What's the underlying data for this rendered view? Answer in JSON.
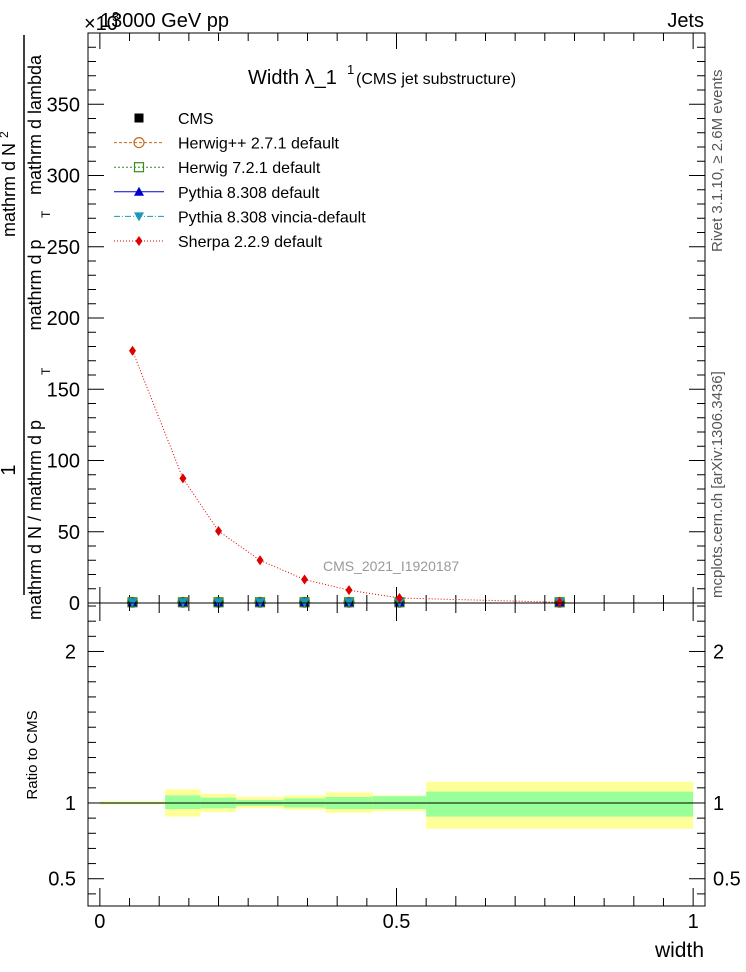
{
  "header": {
    "left": "13000 GeV pp",
    "exponent": "×10",
    "exponent_power": "3",
    "right": "Jets"
  },
  "side": {
    "rivet": "Rivet 3.1.10, ≥ 2.6M events",
    "mcplots": "mcplots.cern.ch [arXiv:1306.3436]"
  },
  "chart_data": [
    {
      "type": "line",
      "title": "Width λ_1",
      "title_sup": "1",
      "title_suffix": "(CMS jet substructure)",
      "watermark": "CMS_2021_I1920187",
      "ylabel_parts": [
        "1",
        "mathrm d N / mathrm d p",
        "T",
        "mathrm d N",
        "2",
        "mathrm d p",
        "T",
        "mathrm d lambda"
      ],
      "ylabel_numerator": "mathrm d²N",
      "ylabel_denominator": "mathrm d p_T mathrm d lambda",
      "ylabel_prefix_num": "1",
      "ylabel_prefix_den": "mathrm d N / mathrm d p_T",
      "xlim": [
        -0.02,
        1.02
      ],
      "ylim": [
        0,
        400
      ],
      "y_scale_note": "×10^3",
      "y_ticks": [
        "0",
        "50",
        "100",
        "150",
        "200",
        "250",
        "300",
        "350"
      ],
      "y_tick_values": [
        0,
        50,
        100,
        150,
        200,
        250,
        300,
        350
      ],
      "legend_position": "top-left",
      "series": [
        {
          "name": "CMS",
          "color": "#000000",
          "marker": "square-filled",
          "x": [
            0.055,
            0.14,
            0.2,
            0.27,
            0.345,
            0.42,
            0.505,
            0.775
          ],
          "y": [
            0.5,
            0.5,
            0.5,
            0.5,
            0.5,
            0.5,
            0.5,
            0.5
          ]
        },
        {
          "name": "Herwig++ 2.7.1 default",
          "color": "#c46a1b",
          "marker": "circle-open",
          "x": [
            0.055,
            0.14,
            0.2,
            0.27,
            0.345,
            0.42,
            0.505,
            0.775
          ],
          "y": [
            0.5,
            0.5,
            0.5,
            0.5,
            0.5,
            0.5,
            0.5,
            0.5
          ]
        },
        {
          "name": "Herwig 7.2.1 default",
          "color": "#3a8a1a",
          "marker": "square-open",
          "x": [
            0.055,
            0.14,
            0.2,
            0.27,
            0.345,
            0.42,
            0.505,
            0.775
          ],
          "y": [
            0.5,
            0.5,
            0.5,
            0.5,
            0.5,
            0.5,
            0.5,
            0.5
          ]
        },
        {
          "name": "Pythia 8.308 default",
          "color": "#0000cc",
          "marker": "triangle-up",
          "x": [
            0.055,
            0.14,
            0.2,
            0.27,
            0.345,
            0.42,
            0.505,
            0.775
          ],
          "y": [
            0.5,
            0.5,
            0.5,
            0.5,
            0.5,
            0.5,
            0.5,
            0.5
          ]
        },
        {
          "name": "Pythia 8.308 vincia-default",
          "color": "#1a9ab8",
          "marker": "triangle-down",
          "x": [
            0.055,
            0.14,
            0.2,
            0.27,
            0.345,
            0.42,
            0.505,
            0.775
          ],
          "y": [
            0.5,
            0.5,
            0.5,
            0.5,
            0.5,
            0.5,
            0.5,
            0.5
          ]
        },
        {
          "name": "Sherpa 2.2.9 default",
          "color": "#dd0000",
          "marker": "diamond",
          "x": [
            0.055,
            0.14,
            0.2,
            0.27,
            0.345,
            0.42,
            0.505,
            0.775
          ],
          "y": [
            177,
            87.5,
            50.5,
            30,
            16.5,
            9,
            3.5,
            0.5
          ]
        }
      ]
    },
    {
      "type": "area",
      "ylabel": "Ratio to CMS",
      "xlabel": "width",
      "xlim": [
        -0.02,
        1.02
      ],
      "ylim": [
        0.32,
        2.32
      ],
      "y_ticks": [
        "0.5",
        "1",
        "2"
      ],
      "y_tick_values": [
        0.5,
        1,
        2
      ],
      "x_ticks": [
        "0",
        "0.5",
        "1"
      ],
      "x_tick_values": [
        0,
        0.5,
        1
      ],
      "colors": {
        "inner": "#99ff99",
        "outer": "#ffff99"
      },
      "bins": [
        {
          "lo": 0.0,
          "hi": 0.11,
          "inner": [
            0.995,
            1.005
          ],
          "outer": [
            0.99,
            1.01
          ]
        },
        {
          "lo": 0.11,
          "hi": 0.17,
          "inner": [
            0.96,
            1.05
          ],
          "outer": [
            0.91,
            1.09
          ]
        },
        {
          "lo": 0.17,
          "hi": 0.23,
          "inner": [
            0.965,
            1.035
          ],
          "outer": [
            0.94,
            1.06
          ]
        },
        {
          "lo": 0.23,
          "hi": 0.31,
          "inner": [
            0.98,
            1.02
          ],
          "outer": [
            0.965,
            1.04
          ]
        },
        {
          "lo": 0.31,
          "hi": 0.38,
          "inner": [
            0.97,
            1.03
          ],
          "outer": [
            0.955,
            1.05
          ]
        },
        {
          "lo": 0.38,
          "hi": 0.46,
          "inner": [
            0.96,
            1.04
          ],
          "outer": [
            0.935,
            1.07
          ]
        },
        {
          "lo": 0.46,
          "hi": 0.55,
          "inner": [
            0.96,
            1.045
          ],
          "outer": [
            0.945,
            1.05
          ]
        },
        {
          "lo": 0.55,
          "hi": 1.0,
          "inner": [
            0.91,
            1.075
          ],
          "outer": [
            0.83,
            1.14
          ]
        }
      ],
      "reference_line": 1
    }
  ]
}
